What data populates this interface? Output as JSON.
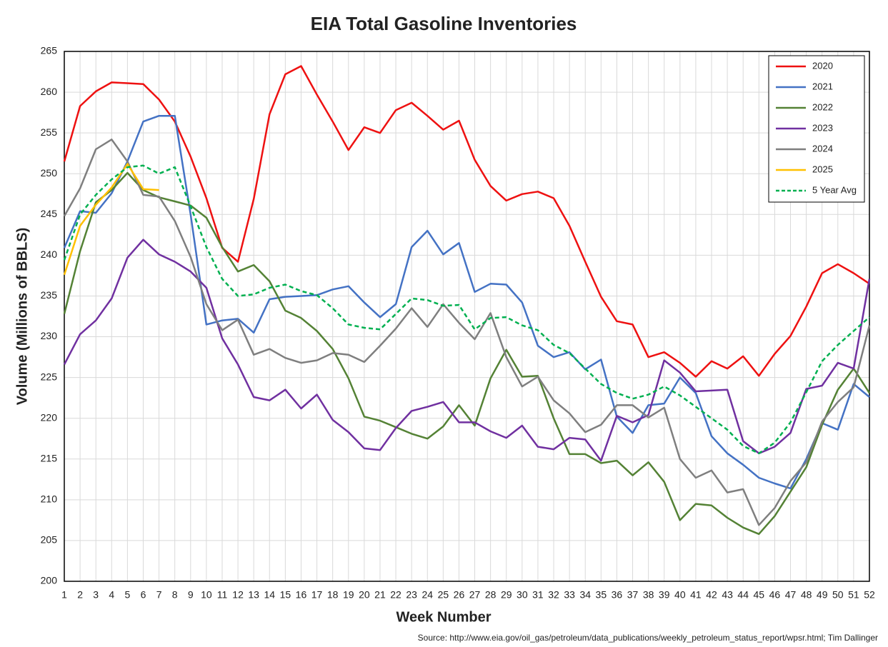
{
  "chart_data": {
    "type": "line",
    "title": "EIA Total Gasoline Inventories",
    "x_label": "Week Number",
    "y_label": "Volume (Millions of BBLS)",
    "source": "Source: http://www.eia.gov/oil_gas/petroleum/data_publications/weekly_petroleum_status_report/wpsr.html; Tim Dallinger",
    "x": [
      1,
      2,
      3,
      4,
      5,
      6,
      7,
      8,
      9,
      10,
      11,
      12,
      13,
      14,
      15,
      16,
      17,
      18,
      19,
      20,
      21,
      22,
      23,
      24,
      25,
      26,
      27,
      28,
      29,
      30,
      31,
      32,
      33,
      34,
      35,
      36,
      37,
      38,
      39,
      40,
      41,
      42,
      43,
      44,
      45,
      46,
      47,
      48,
      49,
      50,
      51,
      52
    ],
    "xlim": [
      1,
      52
    ],
    "xticks": [
      1,
      2,
      3,
      4,
      5,
      6,
      7,
      8,
      9,
      10,
      11,
      12,
      13,
      14,
      15,
      16,
      17,
      18,
      19,
      20,
      21,
      22,
      23,
      24,
      25,
      26,
      27,
      28,
      29,
      30,
      31,
      32,
      33,
      34,
      35,
      36,
      37,
      38,
      39,
      40,
      41,
      42,
      43,
      44,
      45,
      46,
      47,
      48,
      49,
      50,
      51,
      52
    ],
    "ylim": [
      200,
      265
    ],
    "yticks": [
      200,
      205,
      210,
      215,
      220,
      225,
      230,
      235,
      240,
      245,
      250,
      255,
      260,
      265
    ],
    "grid": true,
    "legend": "upper right",
    "series": [
      {
        "name": "2020",
        "color": "#ee1111",
        "values": [
          251.5,
          258.3,
          260.1,
          261.2,
          261.1,
          261.0,
          259.1,
          256.4,
          252.1,
          247.0,
          240.9,
          239.2,
          246.9,
          257.3,
          262.2,
          263.2,
          259.7,
          256.4,
          252.9,
          255.7,
          255.0,
          257.8,
          258.7,
          257.1,
          255.4,
          256.5,
          251.7,
          248.5,
          246.7,
          247.5,
          247.8,
          247.0,
          243.6,
          239.2,
          234.9,
          231.9,
          231.5,
          227.5,
          228.1,
          226.8,
          225.1,
          227.0,
          226.1,
          227.6,
          225.2,
          227.9,
          230.1,
          233.7,
          237.8,
          238.9,
          237.8,
          236.5
        ]
      },
      {
        "name": "2021",
        "color": "#4472c4",
        "values": [
          240.9,
          245.4,
          245.2,
          247.6,
          251.5,
          256.4,
          257.1,
          257.1,
          245.0,
          231.5,
          232.0,
          232.2,
          230.5,
          234.6,
          234.9,
          235.0,
          235.1,
          235.8,
          236.2,
          234.2,
          232.4,
          234.0,
          241.0,
          243.0,
          240.1,
          241.5,
          235.5,
          236.5,
          236.4,
          234.2,
          228.9,
          227.5,
          228.1,
          226.0,
          227.2,
          220.2,
          218.2,
          221.6,
          221.8,
          225.0,
          223.1,
          217.8,
          215.7,
          214.3,
          212.7,
          212.0,
          211.4,
          215.0,
          219.4,
          218.6,
          224.2,
          222.6
        ]
      },
      {
        "name": "2022",
        "color": "#548235",
        "values": [
          232.8,
          240.5,
          246.5,
          248.0,
          250.1,
          248.0,
          247.1,
          246.6,
          246.1,
          244.6,
          241.0,
          238.0,
          238.8,
          236.8,
          233.2,
          232.3,
          230.7,
          228.5,
          224.9,
          220.2,
          219.7,
          218.9,
          218.1,
          217.5,
          219.0,
          221.6,
          219.1,
          224.9,
          228.4,
          225.1,
          225.2,
          220.0,
          215.6,
          215.6,
          214.5,
          214.8,
          213.0,
          214.6,
          212.2,
          207.5,
          209.5,
          209.3,
          207.8,
          206.6,
          205.8,
          208.0,
          211.0,
          214.0,
          219.2,
          223.5,
          226.1,
          223.1
        ]
      },
      {
        "name": "2023",
        "color": "#7030a0",
        "values": [
          226.6,
          230.3,
          232.0,
          234.7,
          239.7,
          241.9,
          240.1,
          239.2,
          238.0,
          236.0,
          229.8,
          226.6,
          222.6,
          222.2,
          223.5,
          221.2,
          222.9,
          219.8,
          218.3,
          216.3,
          216.1,
          218.8,
          220.9,
          221.4,
          222.0,
          219.5,
          219.5,
          218.4,
          217.6,
          219.1,
          216.5,
          216.2,
          217.6,
          217.4,
          214.8,
          220.3,
          219.5,
          220.4,
          227.1,
          225.6,
          223.3,
          223.4,
          223.5,
          217.2,
          215.7,
          216.5,
          218.2,
          223.6,
          224.0,
          226.8,
          226.1,
          237.1
        ]
      },
      {
        "name": "2024",
        "color": "#7f7f7f",
        "values": [
          244.8,
          248.2,
          253.0,
          254.2,
          251.5,
          247.4,
          247.2,
          244.2,
          239.8,
          234.0,
          230.8,
          232.1,
          227.8,
          228.5,
          227.4,
          226.8,
          227.1,
          228.0,
          227.8,
          226.9,
          228.9,
          231.0,
          233.5,
          231.2,
          234.0,
          231.7,
          229.7,
          232.9,
          227.5,
          223.9,
          225.1,
          222.2,
          220.6,
          218.3,
          219.2,
          221.6,
          221.6,
          220.1,
          221.3,
          215.0,
          212.7,
          213.6,
          210.9,
          211.3,
          206.9,
          209.0,
          212.3,
          214.6,
          219.6,
          222.0,
          223.8,
          231.4
        ]
      },
      {
        "name": "2025",
        "color": "#ffc000",
        "values": [
          237.6,
          243.6,
          246.2,
          248.3,
          251.2,
          248.1,
          248.0,
          null,
          null,
          null,
          null,
          null,
          null,
          null,
          null,
          null,
          null,
          null,
          null,
          null,
          null,
          null,
          null,
          null,
          null,
          null,
          null,
          null,
          null,
          null,
          null,
          null,
          null,
          null,
          null,
          null,
          null,
          null,
          null,
          null,
          null,
          null,
          null,
          null,
          null,
          null,
          null,
          null,
          null,
          null,
          null,
          null
        ]
      },
      {
        "name": "5 Year Avg",
        "color": "#00b050",
        "dashed": true,
        "values": [
          239.4,
          245.0,
          247.4,
          249.3,
          250.8,
          251.0,
          250.0,
          250.8,
          246.0,
          241.0,
          237.1,
          235.0,
          235.2,
          236.0,
          236.4,
          235.6,
          235.1,
          233.5,
          231.5,
          231.1,
          230.9,
          232.8,
          234.7,
          234.5,
          233.8,
          233.9,
          230.9,
          232.3,
          232.4,
          231.4,
          230.8,
          229.0,
          228.0,
          226.1,
          224.2,
          223.1,
          222.4,
          222.9,
          223.9,
          222.8,
          221.4,
          220.0,
          218.6,
          216.6,
          215.7,
          217.0,
          219.5,
          223.2,
          227.0,
          229.0,
          230.7,
          232.4
        ]
      }
    ]
  }
}
